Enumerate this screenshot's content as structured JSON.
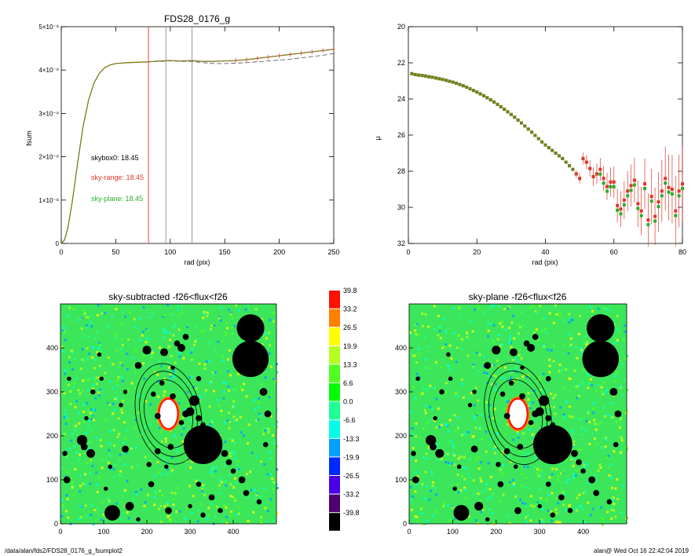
{
  "footer": {
    "path": "/data/alan/fds2/FDS28_0176_g_fsumplot2",
    "user_stamp": "alan@  Wed Oct 16 22:42:04 2019"
  },
  "colors": {
    "measured": "#e0362a",
    "skyrange": "#e0362a",
    "skyplane": "#2aae2a",
    "olive": "#7f7a1e",
    "dashed": "#606060"
  },
  "chart_data": [
    {
      "type": "line",
      "title": "FDS28_0176_g",
      "xlabel": "rad (pix)",
      "ylabel": "fsum",
      "xlim": [
        0,
        250
      ],
      "ylim": [
        0,
        5e-08
      ],
      "xticks": [
        "0",
        "50",
        "100",
        "150",
        "200",
        "250"
      ],
      "yticks": [
        "0",
        "1×10⁻⁸",
        "2×10⁻⁸",
        "3×10⁻⁸",
        "4×10⁻⁸",
        "5×10⁻⁸"
      ],
      "vertical_lines": [
        {
          "x": 80,
          "color": "#e0362a"
        },
        {
          "x": 96,
          "color": "#909090"
        },
        {
          "x": 120,
          "color": "#909090"
        }
      ],
      "annotations": [
        {
          "text": "skybox0: 18.45",
          "color": "#000000"
        },
        {
          "text": "sky-range: 18.45",
          "color": "#e0362a"
        },
        {
          "text": "sky-plane: 18.45",
          "color": "#2aae2a"
        }
      ],
      "series": [
        {
          "x": [
            0,
            3,
            6,
            10,
            15,
            20,
            25,
            30,
            35,
            40,
            45,
            50,
            55,
            60,
            70,
            80,
            90,
            100,
            110,
            120,
            130,
            140,
            150,
            160,
            170,
            180,
            190,
            200,
            210,
            220,
            230,
            240,
            250
          ],
          "y": [
            0,
            8e-10,
            3.5e-09,
            9.5e-09,
            1.85e-08,
            2.7e-08,
            3.3e-08,
            3.7e-08,
            3.93e-08,
            4.06e-08,
            4.12e-08,
            4.15e-08,
            4.16e-08,
            4.17e-08,
            4.18e-08,
            4.19e-08,
            4.21e-08,
            4.22e-08,
            4.21e-08,
            4.22e-08,
            4.2e-08,
            4.2e-08,
            4.21e-08,
            4.22e-08,
            4.24e-08,
            4.27e-08,
            4.3e-08,
            4.33e-08,
            4.36e-08,
            4.39e-08,
            4.42e-08,
            4.45e-08,
            4.48e-08
          ],
          "color": "#e0362a"
        },
        {
          "x": [
            0,
            3,
            6,
            10,
            15,
            20,
            25,
            30,
            35,
            40,
            45,
            50,
            55,
            60,
            70,
            80,
            90,
            100,
            110,
            120,
            130,
            140,
            150,
            160,
            170,
            180,
            190,
            200,
            210,
            220,
            230,
            240,
            250
          ],
          "y": [
            0,
            8e-10,
            3.5e-09,
            9.5e-09,
            1.85e-08,
            2.7e-08,
            3.3e-08,
            3.7e-08,
            3.93e-08,
            4.06e-08,
            4.12e-08,
            4.15e-08,
            4.16e-08,
            4.17e-08,
            4.18e-08,
            4.19e-08,
            4.2e-08,
            4.21e-08,
            4.2e-08,
            4.2e-08,
            4.17e-08,
            4.15e-08,
            4.15e-08,
            4.16e-08,
            4.17e-08,
            4.19e-08,
            4.21e-08,
            4.23e-08,
            4.25e-08,
            4.28e-08,
            4.31e-08,
            4.34e-08,
            4.38e-08
          ],
          "color": "#606060",
          "style": "dashed"
        }
      ]
    },
    {
      "type": "scatter",
      "title": "",
      "xlabel": "rad (pix)",
      "ylabel": "μ",
      "xlim": [
        0,
        80
      ],
      "ylim": [
        32,
        20
      ],
      "xticks": [
        "0",
        "20",
        "40",
        "60",
        "80"
      ],
      "yticks": [
        "20",
        "22",
        "24",
        "26",
        "28",
        "30",
        "32"
      ],
      "series": [
        {
          "x": [
            1,
            2,
            3,
            4,
            5,
            6,
            7,
            8,
            9,
            10,
            11,
            12,
            13,
            14,
            15,
            16,
            17,
            18,
            19,
            20,
            21,
            22,
            23,
            24,
            25,
            26,
            27,
            28,
            29,
            30,
            31,
            32,
            33,
            34,
            35,
            36,
            37,
            38,
            39,
            40,
            41,
            42,
            43,
            44,
            45,
            46,
            47,
            48,
            49,
            50,
            51,
            52,
            53,
            54,
            55,
            56,
            57,
            58,
            59,
            60,
            61,
            62,
            63,
            64,
            65,
            66,
            67,
            68,
            69,
            70,
            71,
            72,
            73,
            74,
            75,
            76,
            77,
            78,
            79,
            80
          ],
          "y": [
            22.6,
            22.65,
            22.68,
            22.7,
            22.73,
            22.77,
            22.8,
            22.84,
            22.88,
            22.92,
            22.97,
            23.02,
            23.07,
            23.13,
            23.2,
            23.27,
            23.35,
            23.44,
            23.53,
            23.62,
            23.72,
            23.82,
            23.93,
            24.05,
            24.17,
            24.3,
            24.43,
            24.57,
            24.71,
            24.86,
            25.01,
            25.17,
            25.33,
            25.5,
            25.67,
            25.84,
            26.02,
            26.2,
            26.38,
            26.55,
            26.7,
            26.85,
            27.0,
            27.15,
            27.3,
            27.5,
            27.7,
            27.9,
            28.15,
            28.4,
            27.3,
            27.5,
            27.85,
            28.3,
            28.15,
            27.9,
            28.4,
            28.85,
            28.6,
            28.6,
            29.9,
            30.1,
            29.6,
            29.1,
            28.8,
            28.5,
            29.8,
            30.2,
            28.7,
            30.7,
            29.4,
            30.5,
            29.7,
            29.1,
            28.4,
            28.9,
            29.0,
            30.2,
            29.1,
            28.7
          ],
          "color": "#e0362a",
          "error_bars": true
        }
      ]
    },
    {
      "type": "heatmap",
      "title": "sky-subtracted -f26<flux<f26",
      "xlim": [
        0,
        500
      ],
      "ylim": [
        0,
        500
      ],
      "xticks": [
        "0",
        "100",
        "200",
        "300",
        "400"
      ],
      "yticks": [
        "0",
        "100",
        "200",
        "300",
        "400"
      ]
    },
    {
      "type": "heatmap",
      "title": "sky-plane -f26<flux<f26",
      "xlim": [
        0,
        500
      ],
      "ylim": [
        0,
        500
      ],
      "xticks": [
        "0",
        "100",
        "200",
        "300",
        "400"
      ],
      "yticks": [
        "0",
        "100",
        "200",
        "300",
        "400"
      ]
    }
  ],
  "colorbar": {
    "levels": [
      "39.8",
      "33.2",
      "26.5",
      "19.9",
      "13.3",
      "6.6",
      "0.0",
      "-6.6",
      "-13.3",
      "-19.9",
      "-26.5",
      "-33.2",
      "-39.8"
    ],
    "colors": [
      "#ff1000",
      "#ff7f00",
      "#ffff00",
      "#b4ff1e",
      "#50ff1e",
      "#00ff00",
      "#1eff96",
      "#00ffe6",
      "#00a0ff",
      "#0028ff",
      "#4a00e6",
      "#50006e",
      "#000000"
    ]
  },
  "image_layout": {
    "black_circles": [
      [
        440,
        445,
        32
      ],
      [
        440,
        375,
        42
      ],
      [
        330,
        180,
        45
      ],
      [
        120,
        25,
        18
      ],
      [
        160,
        40,
        10
      ],
      [
        250,
        30,
        8
      ],
      [
        50,
        190,
        12
      ],
      [
        55,
        175,
        8
      ],
      [
        10,
        160,
        6
      ],
      [
        15,
        100,
        8
      ],
      [
        70,
        160,
        10
      ],
      [
        150,
        170,
        8
      ],
      [
        180,
        360,
        8
      ],
      [
        200,
        395,
        10
      ],
      [
        240,
        390,
        9
      ],
      [
        270,
        410,
        7
      ],
      [
        280,
        400,
        9
      ],
      [
        290,
        425,
        7
      ],
      [
        310,
        280,
        12
      ],
      [
        300,
        255,
        10
      ],
      [
        290,
        250,
        8
      ],
      [
        320,
        240,
        7
      ],
      [
        280,
        230,
        6
      ],
      [
        330,
        225,
        6
      ],
      [
        380,
        160,
        8
      ],
      [
        390,
        140,
        7
      ],
      [
        400,
        120,
        6
      ],
      [
        420,
        100,
        8
      ],
      [
        430,
        70,
        7
      ],
      [
        460,
        50,
        6
      ],
      [
        480,
        250,
        8
      ],
      [
        470,
        300,
        9
      ],
      [
        475,
        180,
        6
      ],
      [
        210,
        90,
        7
      ],
      [
        205,
        135,
        6
      ],
      [
        225,
        165,
        7
      ],
      [
        255,
        175,
        7
      ],
      [
        215,
        295,
        6
      ],
      [
        225,
        245,
        7
      ],
      [
        260,
        290,
        7
      ],
      [
        75,
        300,
        6
      ],
      [
        95,
        330,
        5
      ],
      [
        140,
        270,
        5
      ],
      [
        20,
        330,
        5
      ],
      [
        350,
        60,
        7
      ],
      [
        370,
        30,
        6
      ],
      [
        320,
        90,
        6
      ],
      [
        300,
        40,
        5
      ],
      [
        410,
        360,
        5
      ],
      [
        320,
        330,
        6
      ],
      [
        235,
        320,
        6
      ],
      [
        245,
        130,
        5
      ],
      [
        260,
        355,
        5
      ],
      [
        105,
        80,
        5
      ],
      [
        180,
        10,
        5
      ],
      [
        330,
        20,
        6
      ],
      [
        60,
        240,
        5
      ],
      [
        115,
        130,
        5
      ],
      [
        150,
        300,
        5
      ],
      [
        90,
        385,
        5
      ]
    ]
  }
}
